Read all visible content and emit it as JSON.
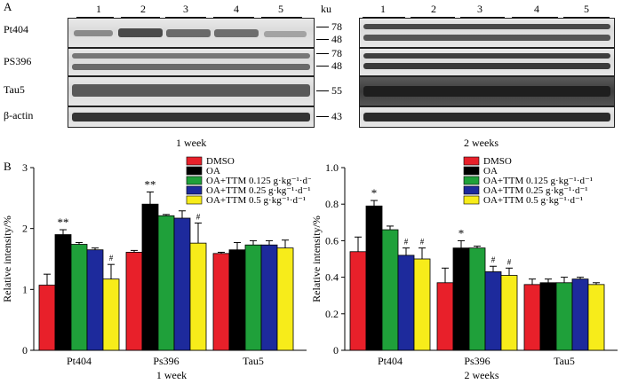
{
  "panel_a": {
    "letter": "A",
    "ku_label": "ku",
    "lane_numbers": [
      "1",
      "2",
      "3",
      "4",
      "5"
    ],
    "row_labels": [
      "Pt404",
      "PS396",
      "Tau5",
      "β-actin"
    ],
    "markers": [
      "78",
      "48",
      "78",
      "48",
      "55",
      "43"
    ],
    "left_caption": "1 week",
    "right_caption": "2 weeks"
  },
  "panel_b": {
    "letter": "B"
  },
  "legend": {
    "entries": [
      "DMSO",
      "OA",
      "OA+TTM 0.125 g·kg⁻¹·d⁻¹",
      "OA+TTM 0.25  g·kg⁻¹·d⁻¹",
      "OA+TTM 0.5  g·kg⁻¹·d⁻¹"
    ],
    "colors": [
      "#e8202a",
      "#000000",
      "#1fa03a",
      "#1d2a9c",
      "#f7ec1a"
    ]
  },
  "chart_data": [
    {
      "type": "bar",
      "title": "",
      "xlabel": "1 week",
      "ylabel": "Relative intensity/%",
      "ylim": [
        0,
        3
      ],
      "yticks": [
        "0",
        "1",
        "2",
        "3"
      ],
      "categories": [
        "Pt404",
        "Ps396",
        "Tau5"
      ],
      "series": [
        {
          "name": "DMSO",
          "values": [
            1.07,
            1.61,
            1.59
          ],
          "errors": [
            0.18,
            0.03,
            0.02
          ]
        },
        {
          "name": "OA",
          "values": [
            1.9,
            2.4,
            1.65
          ],
          "errors": [
            0.08,
            0.2,
            0.12
          ]
        },
        {
          "name": "OA+TTM 0.125 g·kg⁻¹·d⁻¹",
          "values": [
            1.74,
            2.21,
            1.73
          ],
          "errors": [
            0.03,
            0.02,
            0.07
          ]
        },
        {
          "name": "OA+TTM 0.25  g·kg⁻¹·d⁻¹",
          "values": [
            1.65,
            2.17,
            1.73
          ],
          "errors": [
            0.03,
            0.12,
            0.07
          ]
        },
        {
          "name": "OA+TTM 0.5  g·kg⁻¹·d⁻¹",
          "values": [
            1.17,
            1.76,
            1.68
          ],
          "errors": [
            0.24,
            0.33,
            0.13
          ]
        }
      ],
      "annotations": [
        {
          "category": 0,
          "series": 1,
          "text": "**"
        },
        {
          "category": 0,
          "series": 4,
          "text": "#"
        },
        {
          "category": 1,
          "series": 1,
          "text": "**"
        },
        {
          "category": 1,
          "series": 4,
          "text": "#"
        }
      ]
    },
    {
      "type": "bar",
      "title": "",
      "xlabel": "2 weeks",
      "ylabel": "Relative intensity/%",
      "ylim": [
        0,
        1.0
      ],
      "yticks": [
        "0",
        "0.2",
        "0.4",
        "0.6",
        "0.8",
        "1.0"
      ],
      "categories": [
        "Pt404",
        "Ps396",
        "Tau5"
      ],
      "series": [
        {
          "name": "DMSO",
          "values": [
            0.54,
            0.37,
            0.36
          ],
          "errors": [
            0.08,
            0.08,
            0.03
          ]
        },
        {
          "name": "OA",
          "values": [
            0.79,
            0.56,
            0.37
          ],
          "errors": [
            0.03,
            0.04,
            0.02
          ]
        },
        {
          "name": "OA+TTM 0.125 g·kg⁻¹·d⁻¹",
          "values": [
            0.66,
            0.56,
            0.37
          ],
          "errors": [
            0.02,
            0.01,
            0.03
          ]
        },
        {
          "name": "OA+TTM 0.25  g·kg⁻¹·d⁻¹",
          "values": [
            0.52,
            0.43,
            0.39
          ],
          "errors": [
            0.04,
            0.03,
            0.01
          ]
        },
        {
          "name": "OA+TTM 0.5  g·kg⁻¹·d⁻¹",
          "values": [
            0.5,
            0.41,
            0.36
          ],
          "errors": [
            0.06,
            0.04,
            0.01
          ]
        }
      ],
      "annotations": [
        {
          "category": 0,
          "series": 1,
          "text": "*"
        },
        {
          "category": 0,
          "series": 3,
          "text": "#"
        },
        {
          "category": 0,
          "series": 4,
          "text": "#"
        },
        {
          "category": 1,
          "series": 1,
          "text": "*"
        },
        {
          "category": 1,
          "series": 3,
          "text": "#"
        },
        {
          "category": 1,
          "series": 4,
          "text": "#"
        }
      ]
    }
  ]
}
